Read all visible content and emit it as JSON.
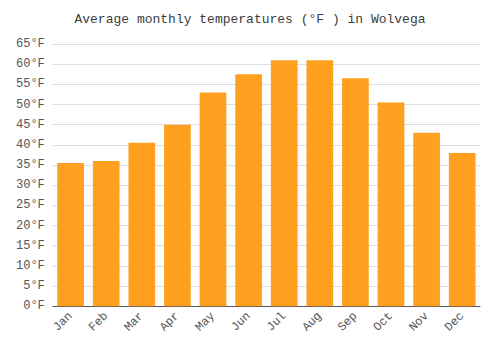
{
  "chart_data": {
    "type": "bar",
    "title": "Average monthly temperatures (°F ) in Wolvega",
    "categories": [
      "Jan",
      "Feb",
      "Mar",
      "Apr",
      "May",
      "Jun",
      "Jul",
      "Aug",
      "Sep",
      "Oct",
      "Nov",
      "Dec"
    ],
    "values": [
      35.5,
      36.0,
      40.5,
      45.0,
      53.0,
      57.5,
      61.0,
      61.0,
      56.5,
      50.5,
      43.0,
      38.0
    ],
    "color": "#FFA020",
    "ylim": [
      0,
      65
    ],
    "yticks": [
      {
        "value": 0,
        "label": "0°F"
      },
      {
        "value": 5,
        "label": "5°F"
      },
      {
        "value": 10,
        "label": "10°F"
      },
      {
        "value": 15,
        "label": "15°F"
      },
      {
        "value": 20,
        "label": "20°F"
      },
      {
        "value": 25,
        "label": "25°F"
      },
      {
        "value": 30,
        "label": "30°F"
      },
      {
        "value": 35,
        "label": "35°F"
      },
      {
        "value": 40,
        "label": "40°F"
      },
      {
        "value": 45,
        "label": "45°F"
      },
      {
        "value": 50,
        "label": "50°F"
      },
      {
        "value": 55,
        "label": "55°F"
      },
      {
        "value": 60,
        "label": "60°F"
      },
      {
        "value": 65,
        "label": "65°F"
      }
    ],
    "grid": true
  }
}
